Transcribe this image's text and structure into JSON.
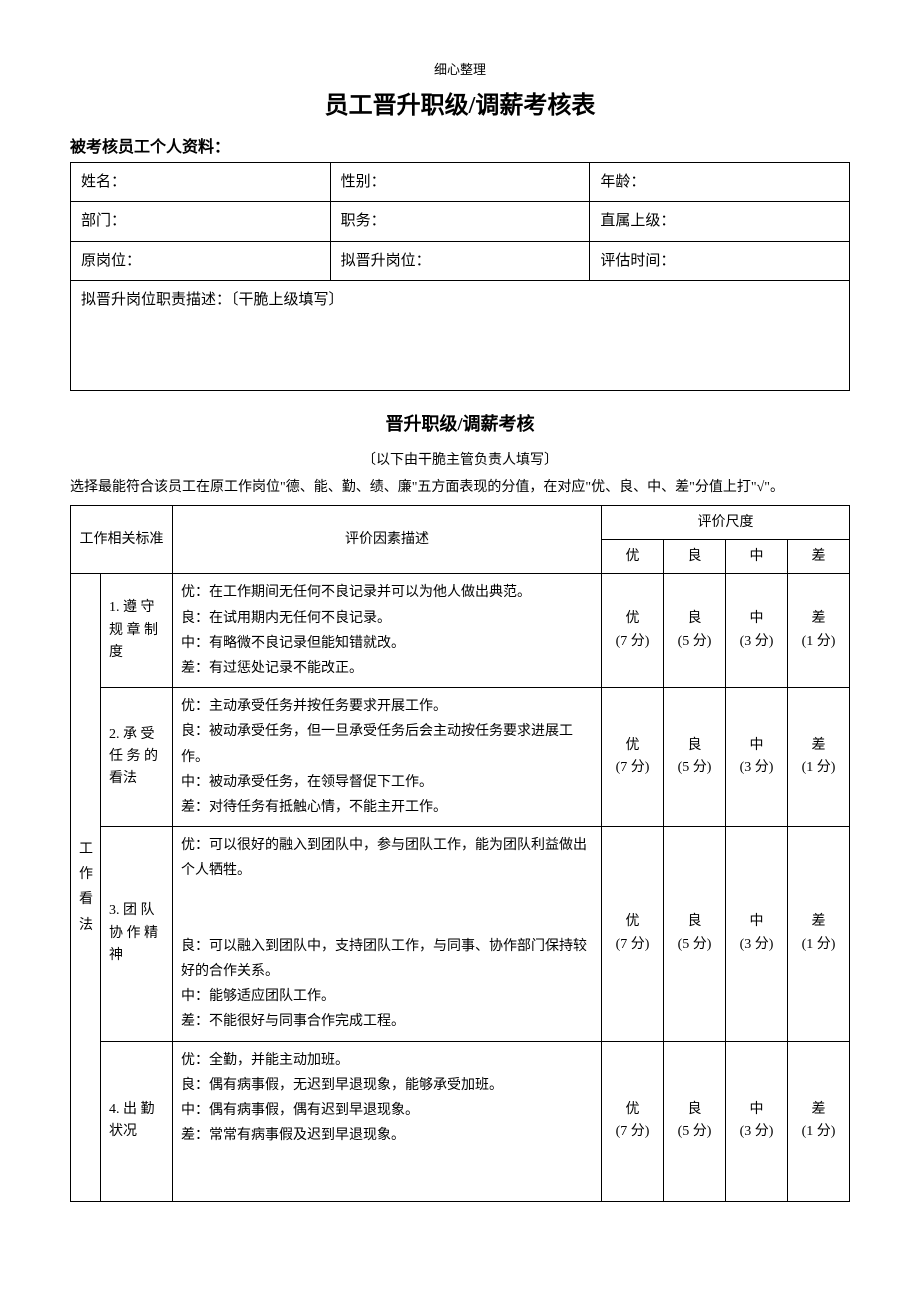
{
  "header": {
    "small_header": "细心整理",
    "title": "员工晋升职级/调薪考核表",
    "section_label": "被考核员工个人资料："
  },
  "info": {
    "name_label": "姓名：",
    "gender_label": "性别：",
    "age_label": "年龄：",
    "dept_label": "部门：",
    "position_label": "职务：",
    "supervisor_label": "直属上级：",
    "orig_post_label": "原岗位：",
    "new_post_label": "拟晋升岗位：",
    "eval_time_label": "评估时间：",
    "desc_label": "拟晋升岗位职责描述：〔干脆上级填写〕"
  },
  "assessment": {
    "subtitle": "晋升职级/调薪考核",
    "note": "〔以下由干脆主管负责人填写〕",
    "instruction": "选择最能符合该员工在原工作岗位\"德、能、勤、绩、廉\"五方面表现的分值，在对应\"优、良、中、差\"分值上打\"√\"。"
  },
  "table_headers": {
    "criteria": "工作相关标准",
    "desc": "评价因素描述",
    "scale": "评价尺度",
    "excellent": "优",
    "good": "良",
    "average": "中",
    "poor": "差"
  },
  "category": {
    "name": "工作看法"
  },
  "scores": {
    "excellent": "优\n(7 分)",
    "good": "良\n(5 分)",
    "average": "中\n(3 分)",
    "poor": "差\n(1 分)"
  },
  "rows": [
    {
      "item": "1. 遵 守规 章 制度",
      "desc": "优：在工作期间无任何不良记录并可以为他人做出典范。\n良：在试用期内无任何不良记录。\n中：有略微不良记录但能知错就改。\n差：有过惩处记录不能改正。"
    },
    {
      "item": "2. 承 受任 务 的看法",
      "desc": "优：主动承受任务并按任务要求开展工作。\n良：被动承受任务，但一旦承受任务后会主动按任务要求进展工作。\n中：被动承受任务，在领导督促下工作。\n差：对待任务有抵触心情，不能主开工作。"
    },
    {
      "item": "3. 团 队协 作 精神",
      "desc": "优：可以很好的融入到团队中，参与团队工作，能为团队利益做出个人牺牲。\n\n良：可以融入到团队中，支持团队工作，与同事、协作部门保持较好的合作关系。\n中：能够适应团队工作。\n差：不能很好与同事合作完成工程。"
    },
    {
      "item": "4. 出 勤状况",
      "desc": "优：全勤，并能主动加班。\n良：偶有病事假，无迟到早退现象，能够承受加班。\n中：偶有病事假，偶有迟到早退现象。\n差：常常有病事假及迟到早退现象。"
    }
  ]
}
